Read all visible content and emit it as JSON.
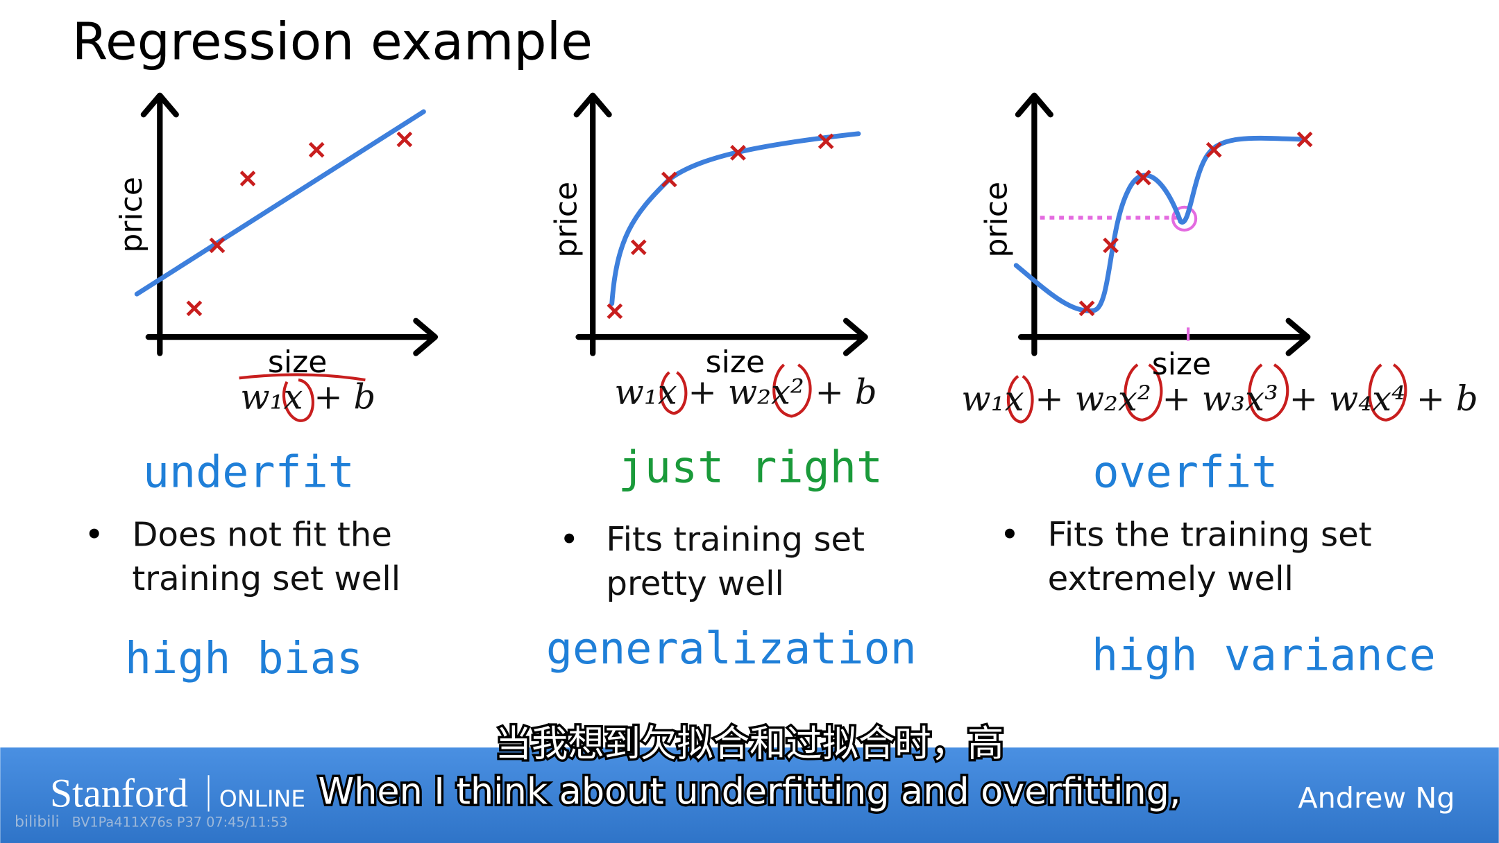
{
  "title": "Regression example",
  "panels": [
    {
      "y_label": "price",
      "x_label": "size",
      "formula": "w₁x + b",
      "fit_label": "underfit",
      "bullet": [
        "Does not fit the",
        "training set well"
      ],
      "note": "high bias"
    },
    {
      "y_label": "price",
      "x_label": "size",
      "formula": "w₁x + w₂x² + b",
      "fit_label": "just right",
      "bullet": [
        "Fits training set",
        "pretty well"
      ],
      "note": "generalization"
    },
    {
      "y_label": "price",
      "x_label": "size",
      "formula": "w₁x + w₂x² + w₃x³ + w₄x⁴ + b",
      "fit_label": "overfit",
      "bullet": [
        "Fits the training set",
        "extremely well"
      ],
      "note": "high variance"
    }
  ],
  "footer": {
    "brand": "Stanford",
    "brand_suffix": "ONLINE",
    "presenter": "Andrew Ng",
    "subtitle_zh": "当我想到欠拟合和过拟合时，高",
    "subtitle_en": "When I think about underfitting and overfitting,",
    "watermark": "bilibili",
    "video_info": "BV1Pa411X76s P37 07:45/11:53"
  }
}
